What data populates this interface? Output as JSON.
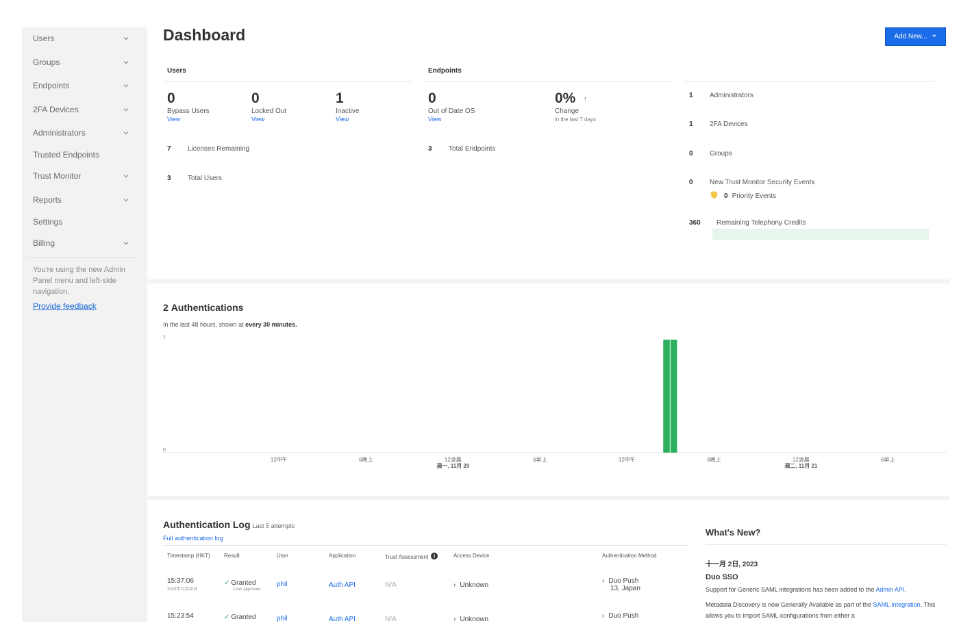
{
  "sidebar": {
    "items": [
      {
        "label": "Users",
        "has_chevron": true
      },
      {
        "label": "Groups",
        "has_chevron": true
      },
      {
        "label": "Endpoints",
        "has_chevron": true
      },
      {
        "label": "2FA Devices",
        "has_chevron": true
      },
      {
        "label": "Administrators",
        "has_chevron": true
      },
      {
        "label": "Trusted Endpoints",
        "has_chevron": false
      },
      {
        "label": "Trust Monitor",
        "has_chevron": true
      },
      {
        "label": "Reports",
        "has_chevron": true
      },
      {
        "label": "Settings",
        "has_chevron": false
      },
      {
        "label": "Billing",
        "has_chevron": true
      }
    ],
    "note": "You're using the new Admin Panel menu and left-side navigation.",
    "feedback_link": "Provide feedback"
  },
  "header": {
    "title": "Dashboard",
    "add_button": "Add New..."
  },
  "users_panel": {
    "heading": "Users",
    "stats": [
      {
        "value": "0",
        "label": "Bypass Users",
        "link": "View"
      },
      {
        "value": "0",
        "label": "Locked Out",
        "link": "View"
      },
      {
        "value": "1",
        "label": "Inactive",
        "link": "View"
      }
    ],
    "rows": [
      {
        "value": "7",
        "label": "Licenses Remaining"
      },
      {
        "value": "3",
        "label": "Total Users"
      }
    ]
  },
  "endpoints_panel": {
    "heading": "Endpoints",
    "stats": [
      {
        "value": "0",
        "label": "Out of Date OS",
        "link": "View"
      },
      {
        "value": "0%",
        "arrow": "↑",
        "label": "Change",
        "sub": "in the last 7 days"
      }
    ],
    "rows": [
      {
        "value": "3",
        "label": "Total Endpoints"
      }
    ]
  },
  "summary_panel": {
    "rows": [
      {
        "value": "1",
        "label": "Administrators"
      },
      {
        "value": "1",
        "label": "2FA Devices"
      },
      {
        "value": "0",
        "label": "Groups"
      },
      {
        "value": "0",
        "label": "New Trust Monitor Security Events"
      }
    ],
    "priority": {
      "value": "0",
      "label": "Priority Events"
    },
    "credits": {
      "value": "360",
      "label": "Remaining Telephony Credits"
    }
  },
  "auth_chart": {
    "count": "2",
    "title_word": "Authentications",
    "subtitle_prefix": "In the last 48 hours, shown at",
    "subtitle_bold": "every 30 minutes."
  },
  "chart_data": {
    "type": "bar",
    "title": "2 Authentications",
    "subtitle": "In the last 48 hours, shown at every 30 minutes.",
    "ylim": [
      0,
      1
    ],
    "y_ticks": [
      "0",
      "1"
    ],
    "x_ticks": [
      {
        "line1": "12中午",
        "line2": ""
      },
      {
        "line1": "6晚上",
        "line2": ""
      },
      {
        "line1": "12凌晨",
        "line2": "週一, 11月 20"
      },
      {
        "line1": "6早上",
        "line2": ""
      },
      {
        "line1": "12中午",
        "line2": ""
      },
      {
        "line1": "6晚上",
        "line2": ""
      },
      {
        "line1": "12凌晨",
        "line2": "週二, 11月 21"
      },
      {
        "line1": "6早上",
        "line2": ""
      }
    ],
    "tick_hours": [
      12,
      18,
      24,
      30,
      36,
      42,
      48,
      54
    ],
    "x_range_hours": [
      4,
      58
    ],
    "bars": [
      {
        "hour": 38.5,
        "value": 1
      },
      {
        "hour": 39.0,
        "value": 1
      }
    ],
    "bar_color": "#2bb05e"
  },
  "auth_log": {
    "title": "Authentication Log",
    "subtitle": "Last 5 attempts",
    "link": "Full authentication log",
    "columns": [
      "Timestamp (HKT)",
      "Result",
      "User",
      "Application",
      "Trust Assessment",
      "Access Device",
      "Authentication Method"
    ],
    "rows": [
      {
        "time": "15:37:06",
        "date": "2023年11月20日",
        "result": "Granted",
        "result_note": "User approved",
        "user": "phil",
        "app": "Auth API",
        "trust": "N/A",
        "device": "Unknown",
        "method": "Duo Push",
        "method_loc": "13, Japan"
      },
      {
        "time": "15:23:54",
        "date": "",
        "result": "Granted",
        "result_note": "",
        "user": "phil",
        "app": "Auth API",
        "trust": "N/A",
        "device": "Unknown",
        "method": "Duo Push",
        "method_loc": ""
      }
    ]
  },
  "whats_new": {
    "title": "What's New?",
    "date": "十一月 2日, 2023",
    "headline": "Duo SSO",
    "p1_text": "Support for Generic SAML integrations has been added to the",
    "p1_link": "Admin API",
    "p1_end": ".",
    "p2_text": "Metadata Discovery is now Generally Available as part of the",
    "p2_link": "SAML Integration",
    "p2_end": ". This allows you to import SAML configurations from either a"
  },
  "colors": {
    "accent": "#1a6ce8",
    "success": "#2bb05e",
    "sidebar_bg": "#f2f2f2"
  }
}
